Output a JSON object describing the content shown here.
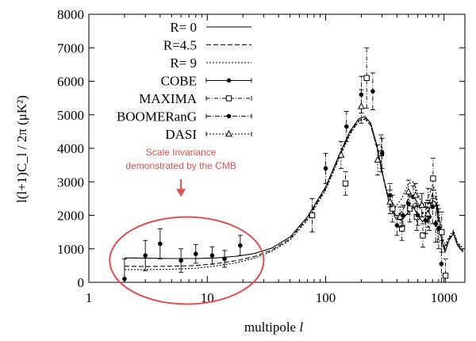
{
  "chart_data": {
    "type": "scatter",
    "title": "",
    "xlabel": "multipole",
    "xlabel_symbol": "l",
    "ylabel": "l(l+1)C_l / 2π  (μK²)",
    "x_scale": "log",
    "xlim": [
      1,
      1500
    ],
    "ylim": [
      0,
      8000
    ],
    "x_ticks": [
      1,
      10,
      100,
      1000
    ],
    "x_tick_labels": [
      "1",
      "10",
      "100",
      "1000"
    ],
    "y_ticks": [
      0,
      1000,
      2000,
      3000,
      4000,
      5000,
      6000,
      7000,
      8000
    ],
    "y_tick_labels": [
      "0",
      "1000",
      "2000",
      "3000",
      "4000",
      "5000",
      "6000",
      "7000",
      "8000"
    ],
    "grid": false,
    "legend_position": "top-left",
    "colors": {
      "series": "#000000",
      "annotation": "#e05050"
    },
    "series": [
      {
        "name": "R=   0",
        "kind": "line",
        "style": "solid",
        "points": [
          [
            2,
            730
          ],
          [
            3,
            720
          ],
          [
            5,
            710
          ],
          [
            8,
            710
          ],
          [
            12,
            730
          ],
          [
            18,
            780
          ],
          [
            25,
            860
          ],
          [
            35,
            1020
          ],
          [
            50,
            1350
          ],
          [
            70,
            1950
          ],
          [
            100,
            2850
          ],
          [
            130,
            3800
          ],
          [
            160,
            4500
          ],
          [
            190,
            4880
          ],
          [
            215,
            4950
          ],
          [
            240,
            4750
          ],
          [
            270,
            4100
          ],
          [
            300,
            3300
          ],
          [
            340,
            2450
          ],
          [
            390,
            1900
          ],
          [
            440,
            1850
          ],
          [
            500,
            2100
          ],
          [
            550,
            2250
          ],
          [
            600,
            2000
          ],
          [
            660,
            1800
          ],
          [
            730,
            2050
          ],
          [
            800,
            2450
          ],
          [
            850,
            2380
          ],
          [
            900,
            1800
          ],
          [
            960,
            1200
          ],
          [
            1020,
            900
          ],
          [
            1100,
            1250
          ],
          [
            1200,
            1450
          ],
          [
            1300,
            1100
          ],
          [
            1450,
            900
          ]
        ]
      },
      {
        "name": "R=4.5",
        "kind": "line",
        "style": "dashed",
        "points": [
          [
            2,
            480
          ],
          [
            3,
            470
          ],
          [
            5,
            480
          ],
          [
            8,
            500
          ],
          [
            12,
            560
          ],
          [
            18,
            650
          ],
          [
            25,
            770
          ],
          [
            35,
            960
          ],
          [
            50,
            1300
          ],
          [
            70,
            1900
          ],
          [
            100,
            2800
          ],
          [
            130,
            3750
          ],
          [
            160,
            4450
          ],
          [
            190,
            4830
          ],
          [
            215,
            4900
          ],
          [
            240,
            4700
          ],
          [
            270,
            4050
          ],
          [
            300,
            3250
          ],
          [
            340,
            2450
          ],
          [
            390,
            2000
          ],
          [
            440,
            2100
          ],
          [
            500,
            2500
          ],
          [
            550,
            2600
          ],
          [
            600,
            2350
          ],
          [
            660,
            2050
          ],
          [
            730,
            2250
          ],
          [
            800,
            2650
          ],
          [
            850,
            2550
          ],
          [
            900,
            1950
          ],
          [
            960,
            1300
          ],
          [
            1020,
            1000
          ],
          [
            1100,
            1300
          ],
          [
            1200,
            1500
          ],
          [
            1300,
            1150
          ],
          [
            1450,
            950
          ]
        ]
      },
      {
        "name": "R=   9",
        "kind": "line",
        "style": "dotted",
        "points": [
          [
            2,
            380
          ],
          [
            3,
            380
          ],
          [
            5,
            390
          ],
          [
            8,
            420
          ],
          [
            12,
            490
          ],
          [
            18,
            590
          ],
          [
            25,
            720
          ],
          [
            35,
            920
          ],
          [
            50,
            1260
          ],
          [
            70,
            1850
          ],
          [
            100,
            2750
          ],
          [
            130,
            3700
          ],
          [
            160,
            4400
          ],
          [
            190,
            4800
          ],
          [
            215,
            4870
          ],
          [
            240,
            4680
          ],
          [
            270,
            4050
          ],
          [
            300,
            3280
          ],
          [
            340,
            2550
          ],
          [
            390,
            2250
          ],
          [
            440,
            2500
          ],
          [
            500,
            2950
          ],
          [
            550,
            3000
          ],
          [
            600,
            2650
          ],
          [
            660,
            2300
          ],
          [
            730,
            2500
          ],
          [
            800,
            2900
          ],
          [
            850,
            2750
          ],
          [
            900,
            2100
          ],
          [
            960,
            1400
          ],
          [
            1020,
            1100
          ],
          [
            1100,
            1350
          ],
          [
            1200,
            1550
          ],
          [
            1300,
            1200
          ],
          [
            1450,
            1000
          ]
        ]
      },
      {
        "name": "COBE",
        "kind": "errorbar",
        "marker": "dot",
        "points": [
          [
            2,
            100,
            600
          ],
          [
            3,
            800,
            450
          ],
          [
            4,
            1150,
            450
          ],
          [
            6,
            650,
            350
          ],
          [
            8,
            850,
            280
          ],
          [
            11,
            800,
            260
          ],
          [
            14,
            700,
            250
          ],
          [
            19,
            1100,
            300
          ]
        ]
      },
      {
        "name": "MAXIMA",
        "kind": "errorbar",
        "marker": "square",
        "points": [
          [
            77,
            2000,
            500
          ],
          [
            147,
            2950,
            350
          ],
          [
            222,
            6100,
            900
          ],
          [
            294,
            3850,
            550
          ],
          [
            367,
            2200,
            400
          ],
          [
            441,
            1600,
            350
          ],
          [
            514,
            2200,
            400
          ],
          [
            588,
            1950,
            400
          ],
          [
            662,
            1400,
            350
          ],
          [
            735,
            2300,
            500
          ],
          [
            808,
            3100,
            600
          ],
          [
            882,
            1750,
            550
          ],
          [
            955,
            1500,
            600
          ],
          [
            1029,
            200,
            500
          ]
        ]
      },
      {
        "name": "BOOMERanG",
        "kind": "errorbar",
        "marker": "dot",
        "points": [
          [
            100,
            3400,
            450
          ],
          [
            150,
            4650,
            450
          ],
          [
            200,
            5600,
            550
          ],
          [
            250,
            5700,
            550
          ],
          [
            300,
            3850,
            450
          ],
          [
            350,
            2600,
            350
          ],
          [
            400,
            1700,
            300
          ],
          [
            450,
            2000,
            300
          ],
          [
            500,
            2350,
            330
          ],
          [
            550,
            2550,
            330
          ],
          [
            600,
            2000,
            300
          ],
          [
            650,
            2300,
            350
          ],
          [
            700,
            1850,
            400
          ],
          [
            750,
            1950,
            400
          ],
          [
            800,
            2250,
            500
          ],
          [
            850,
            1750,
            550
          ],
          [
            900,
            1600,
            600
          ],
          [
            950,
            550,
            700
          ]
        ]
      },
      {
        "name": "DASI",
        "kind": "errorbar",
        "marker": "triangle",
        "points": [
          [
            135,
            3800,
            400
          ],
          [
            200,
            5250,
            500
          ],
          [
            275,
            3650,
            450
          ],
          [
            350,
            2400,
            350
          ],
          [
            425,
            1950,
            300
          ],
          [
            500,
            2700,
            350
          ],
          [
            575,
            2600,
            350
          ],
          [
            650,
            2300,
            350
          ],
          [
            730,
            2050,
            400
          ]
        ]
      }
    ],
    "annotations": [
      {
        "text_lines": [
          "Scale Invariance",
          "demonstrated by the CMB"
        ],
        "arrow_to": [
          6,
          2550
        ],
        "ellipse_center": [
          5.5,
          650
        ],
        "ellipse_x_range": [
          1.5,
          30
        ],
        "ellipse_y_range": [
          -650,
          1950
        ]
      }
    ]
  }
}
